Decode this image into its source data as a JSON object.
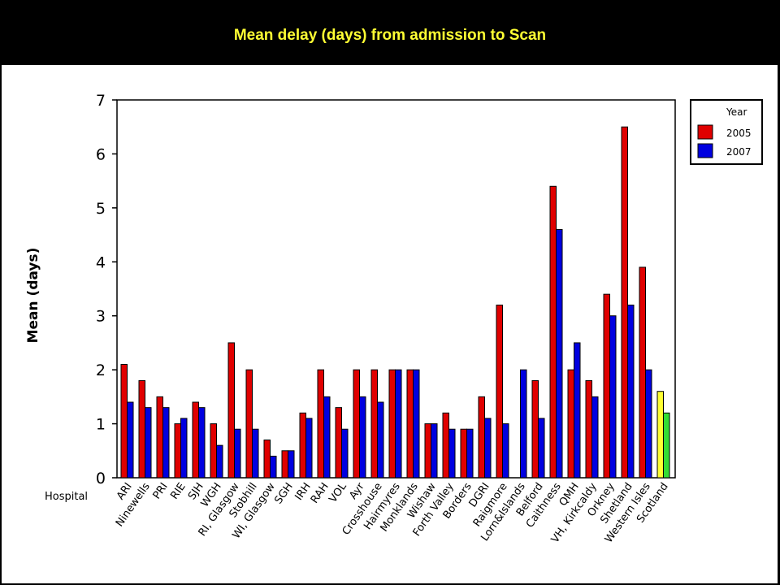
{
  "slide": {
    "title": "Mean delay (days) from admission to Scan"
  },
  "chart_data": {
    "type": "bar",
    "ylabel": "Mean (days)",
    "xlabel": "Hospital",
    "ylim": [
      0,
      7
    ],
    "yticks": [
      0,
      1,
      2,
      3,
      4,
      5,
      6,
      7
    ],
    "legend": {
      "title": "Year",
      "position": "top-right"
    },
    "categories": [
      "ARI",
      "Ninewells",
      "PRI",
      "RIE",
      "SJH",
      "WGH",
      "RI, Glasgow",
      "Stobhill",
      "WI, Glasgow",
      "SGH",
      "IRH",
      "RAH",
      "VOL",
      "Ayr",
      "Crosshouse",
      "Hairmyres",
      "Monklands",
      "Wishaw",
      "Forth Valley",
      "Borders",
      "DGRI",
      "Raigmore",
      "Lorn&Islands",
      "Belford",
      "Caithness",
      "QMH",
      "VH, Kirkcaldy",
      "Orkney",
      "Shetland",
      "Western Isles",
      "Scotland"
    ],
    "series": [
      {
        "name": "2005",
        "color": "#e00000",
        "values": [
          2.1,
          1.8,
          1.5,
          1.0,
          1.4,
          1.0,
          2.5,
          2.0,
          0.7,
          0.5,
          1.2,
          2.0,
          1.3,
          2.0,
          2.0,
          2.0,
          2.0,
          1.0,
          1.2,
          0.9,
          1.5,
          3.2,
          null,
          1.8,
          5.4,
          2.0,
          1.8,
          3.4,
          6.5,
          3.9,
          1.6
        ]
      },
      {
        "name": "2007",
        "color": "#0000e0",
        "values": [
          1.4,
          1.3,
          1.3,
          1.1,
          1.3,
          0.6,
          0.9,
          0.9,
          0.4,
          0.5,
          1.1,
          1.5,
          0.9,
          1.5,
          1.4,
          2.0,
          2.0,
          1.0,
          0.9,
          0.9,
          1.1,
          1.0,
          2.0,
          1.1,
          4.6,
          2.5,
          1.5,
          3.0,
          3.2,
          2.0,
          1.2
        ]
      }
    ],
    "highlight": {
      "category": "Scotland",
      "colors": [
        "#ffff33",
        "#33dd33"
      ]
    },
    "grid": false
  }
}
